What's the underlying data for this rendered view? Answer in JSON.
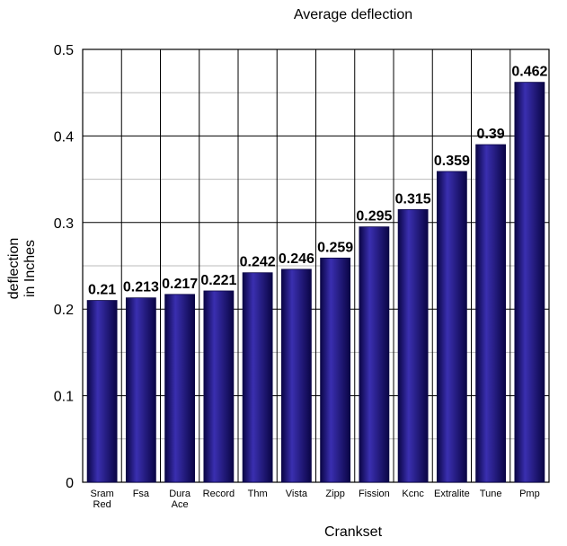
{
  "chart_data": {
    "type": "bar",
    "title": "Average deflection",
    "xlabel": "Crankset",
    "ylabel": [
      "deflection",
      "in Inches"
    ],
    "categories": [
      [
        "Sram",
        "Red"
      ],
      [
        "Fsa"
      ],
      [
        "Dura",
        "Ace"
      ],
      [
        "Record"
      ],
      [
        "Thm"
      ],
      [
        "Vista"
      ],
      [
        "Zipp"
      ],
      [
        "Fission"
      ],
      [
        "Kcnc"
      ],
      [
        "Extralite"
      ],
      [
        "Tune"
      ],
      [
        "Pmp"
      ]
    ],
    "values": [
      0.21,
      0.213,
      0.217,
      0.221,
      0.242,
      0.246,
      0.259,
      0.295,
      0.315,
      0.359,
      0.39,
      0.462
    ],
    "data_labels": [
      "0.21",
      "0.213",
      "0.217",
      "0.221",
      "0.242",
      "0.246",
      "0.259",
      "0.295",
      "0.315",
      "0.359",
      "0.39",
      "0.462"
    ],
    "ylim": [
      0,
      0.5
    ],
    "yticks": [
      "0",
      "0.1",
      "0.2",
      "0.3",
      "0.4",
      "0.5"
    ],
    "grid": true,
    "bar_color": "#1a0f7a",
    "bar_highlight": "#3a2fb0",
    "bar_shadow": "#0a0545"
  }
}
